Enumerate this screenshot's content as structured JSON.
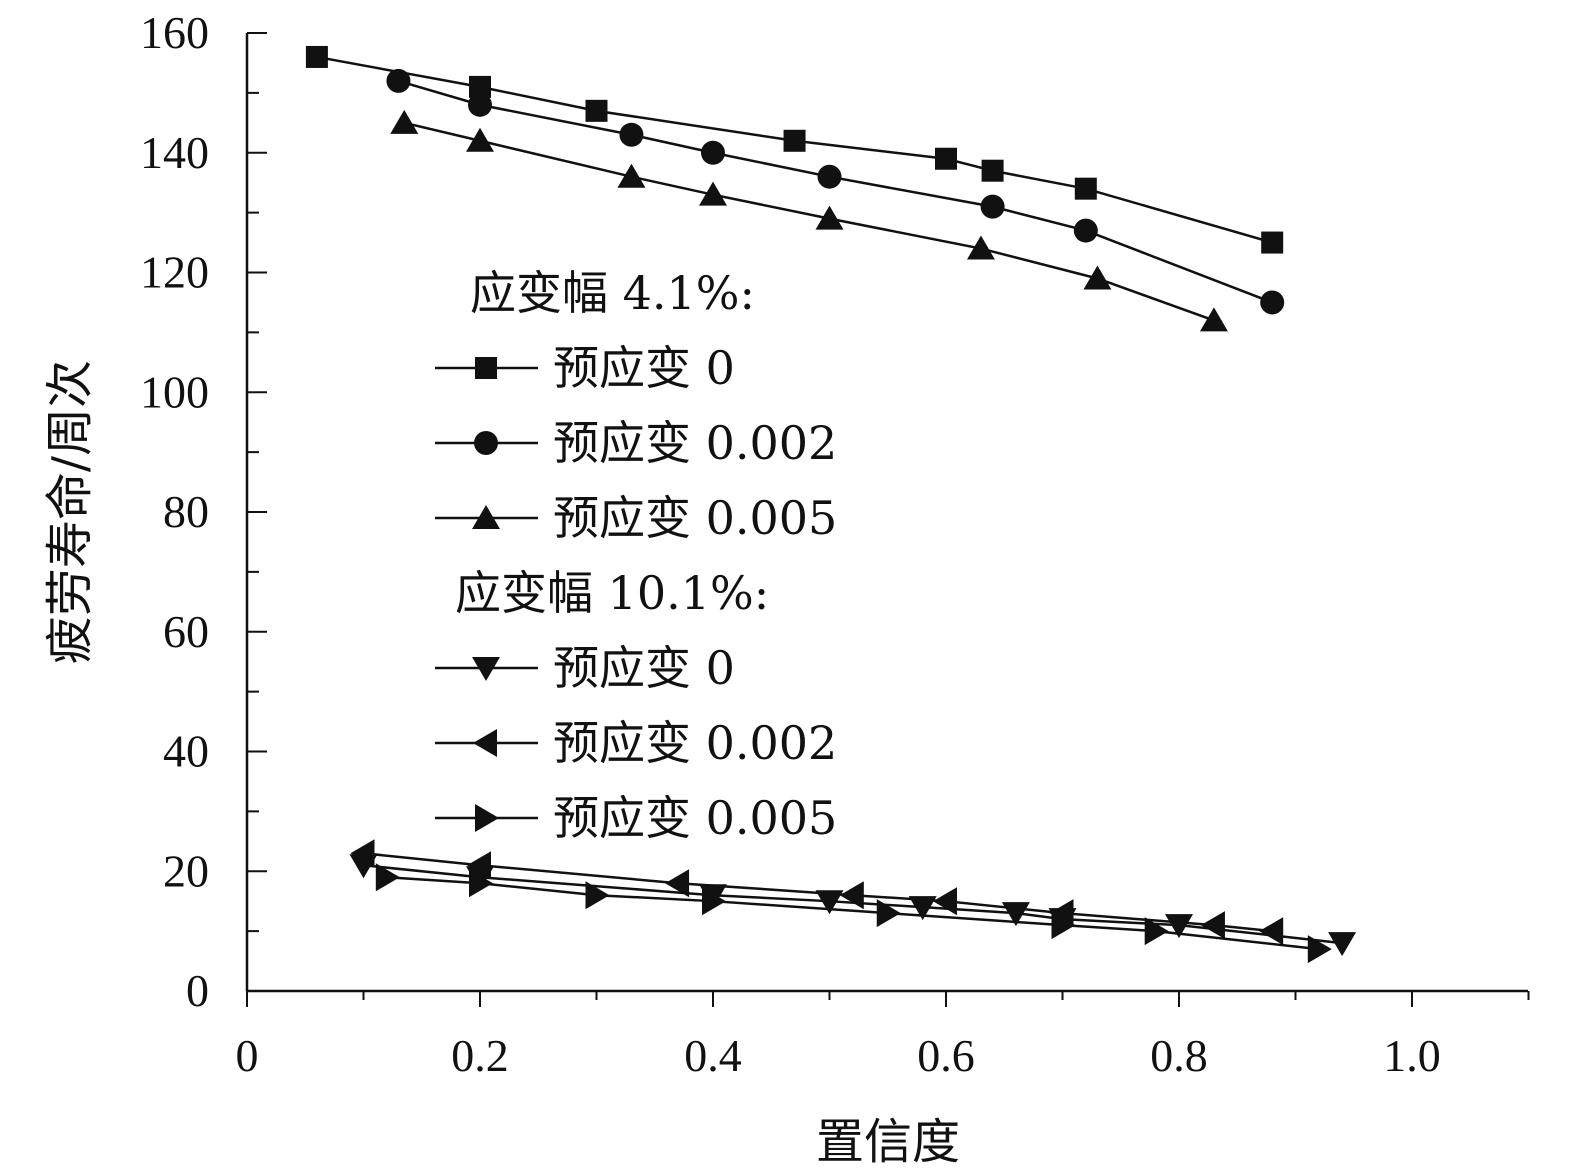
{
  "chart_data": {
    "type": "line",
    "title": "",
    "xlabel": "置信度",
    "ylabel": "疲劳寿命/周次",
    "xlim": [
      0,
      1.1
    ],
    "ylim": [
      0,
      160
    ],
    "x_ticks": [
      "0",
      "0.2",
      "0.4",
      "0.6",
      "0.8",
      "1.0"
    ],
    "x_tick_values": [
      0,
      0.2,
      0.4,
      0.6,
      0.8,
      1.0
    ],
    "y_ticks": [
      "0",
      "20",
      "40",
      "60",
      "80",
      "100",
      "120",
      "140",
      "160"
    ],
    "y_tick_values": [
      0,
      20,
      40,
      60,
      80,
      100,
      120,
      140,
      160
    ],
    "grid": false,
    "legend_position": "center-left",
    "legend": [
      {
        "type": "header",
        "label": "应变幅 4.1%:"
      },
      {
        "type": "series",
        "series": 0,
        "label": "预应变 0"
      },
      {
        "type": "series",
        "series": 1,
        "label": "预应变 0.002"
      },
      {
        "type": "series",
        "series": 2,
        "label": "预应变 0.005"
      },
      {
        "type": "header",
        "label": "应变幅 10.1%:"
      },
      {
        "type": "series",
        "series": 3,
        "label": "预应变 0"
      },
      {
        "type": "series",
        "series": 4,
        "label": "预应变 0.002"
      },
      {
        "type": "series",
        "series": 5,
        "label": "预应变 0.005"
      }
    ],
    "series": [
      {
        "group": "应变幅 4.1%",
        "name": "预应变 0",
        "marker": "square",
        "x": [
          0.06,
          0.2,
          0.3,
          0.47,
          0.6,
          0.64,
          0.72,
          0.88
        ],
        "y": [
          156,
          151,
          147,
          142,
          139,
          137,
          134,
          125
        ]
      },
      {
        "group": "应变幅 4.1%",
        "name": "预应变 0.002",
        "marker": "circle",
        "x": [
          0.13,
          0.2,
          0.33,
          0.4,
          0.5,
          0.64,
          0.72,
          0.88
        ],
        "y": [
          152,
          148,
          143,
          140,
          136,
          131,
          127,
          115
        ]
      },
      {
        "group": "应变幅 4.1%",
        "name": "预应变 0.005",
        "marker": "triangle-up",
        "x": [
          0.135,
          0.2,
          0.33,
          0.4,
          0.5,
          0.63,
          0.73,
          0.83
        ],
        "y": [
          145,
          142,
          136,
          133,
          129,
          124,
          119,
          112
        ]
      },
      {
        "group": "应变幅 10.1%",
        "name": "预应变 0",
        "marker": "triangle-down",
        "x": [
          0.1,
          0.2,
          0.4,
          0.5,
          0.58,
          0.66,
          0.7,
          0.8,
          0.94
        ],
        "y": [
          21,
          19,
          16,
          15,
          14,
          13,
          12,
          11,
          8
        ]
      },
      {
        "group": "应变幅 10.1%",
        "name": "预应变 0.002",
        "marker": "triangle-left",
        "x": [
          0.1,
          0.2,
          0.37,
          0.52,
          0.6,
          0.7,
          0.83,
          0.88
        ],
        "y": [
          23,
          21,
          18,
          16,
          15,
          13,
          11,
          10
        ]
      },
      {
        "group": "应变幅 10.1%",
        "name": "预应变 0.005",
        "marker": "triangle-right",
        "x": [
          0.12,
          0.2,
          0.3,
          0.4,
          0.55,
          0.7,
          0.78,
          0.92
        ],
        "y": [
          19,
          18,
          16,
          15,
          13,
          11,
          10,
          7
        ]
      }
    ]
  }
}
